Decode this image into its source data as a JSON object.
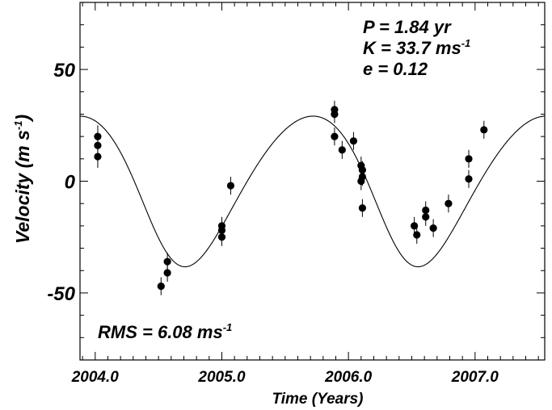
{
  "chart_data": {
    "type": "scatter",
    "xlabel": "Time  (Years)",
    "ylabel_main": "Velocity (m s",
    "ylabel_sup": "-1",
    "ylabel_close": ")",
    "xlim": [
      2003.88,
      2007.55
    ],
    "ylim": [
      -80,
      80
    ],
    "x_ticks": [
      2004.0,
      2005.0,
      2006.0,
      2007.0
    ],
    "x_tick_labels": [
      "2004.0",
      "2005.0",
      "2006.0",
      "2007.0"
    ],
    "y_ticks": [
      50,
      0,
      -50
    ],
    "y_tick_labels": [
      "50",
      "0",
      "-50"
    ],
    "annotations": {
      "period": "P = 1.84 yr",
      "amp_main": "K = 33.7 ms",
      "amp_sup": "-1",
      "ecc": "e = 0.12",
      "rms_main": "RMS = 6.08 ms",
      "rms_sup": "-1"
    },
    "points": [
      {
        "x": 2004.02,
        "y": 20,
        "err": 5
      },
      {
        "x": 2004.02,
        "y": 16,
        "err": 5
      },
      {
        "x": 2004.02,
        "y": 11,
        "err": 5
      },
      {
        "x": 2004.52,
        "y": -47,
        "err": 4
      },
      {
        "x": 2004.57,
        "y": -36,
        "err": 4
      },
      {
        "x": 2004.57,
        "y": -41,
        "err": 4
      },
      {
        "x": 2005.0,
        "y": -20,
        "err": 4
      },
      {
        "x": 2005.0,
        "y": -22,
        "err": 4
      },
      {
        "x": 2005.0,
        "y": -25,
        "err": 4
      },
      {
        "x": 2005.07,
        "y": -2,
        "err": 4
      },
      {
        "x": 2005.89,
        "y": 32,
        "err": 4
      },
      {
        "x": 2005.89,
        "y": 30,
        "err": 4
      },
      {
        "x": 2005.89,
        "y": 20,
        "err": 4
      },
      {
        "x": 2005.95,
        "y": 14,
        "err": 4
      },
      {
        "x": 2006.04,
        "y": 18,
        "err": 4
      },
      {
        "x": 2006.1,
        "y": 7,
        "err": 4
      },
      {
        "x": 2006.11,
        "y": 5,
        "err": 4
      },
      {
        "x": 2006.11,
        "y": 2,
        "err": 4
      },
      {
        "x": 2006.1,
        "y": 0,
        "err": 4
      },
      {
        "x": 2006.11,
        "y": -12,
        "err": 4
      },
      {
        "x": 2006.52,
        "y": -20,
        "err": 4
      },
      {
        "x": 2006.54,
        "y": -24,
        "err": 4
      },
      {
        "x": 2006.61,
        "y": -13,
        "err": 4
      },
      {
        "x": 2006.61,
        "y": -16,
        "err": 4
      },
      {
        "x": 2006.67,
        "y": -21,
        "err": 4
      },
      {
        "x": 2006.79,
        "y": -10,
        "err": 4
      },
      {
        "x": 2006.95,
        "y": 10,
        "err": 4
      },
      {
        "x": 2006.95,
        "y": 1,
        "err": 4
      },
      {
        "x": 2007.07,
        "y": 23,
        "err": 4
      }
    ],
    "model_curve": {
      "period": 1.84,
      "K": 33.7,
      "e": 0.12,
      "omega_deg": 140,
      "gamma": -1.5,
      "max_epoch": 2005.72
    },
    "grid": false,
    "legend": "none"
  }
}
